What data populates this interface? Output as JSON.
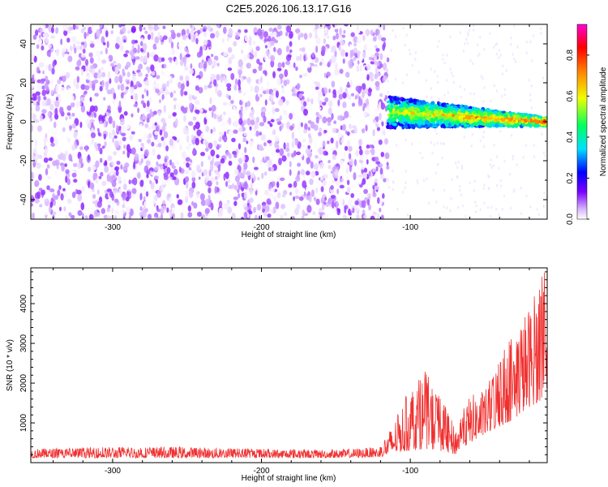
{
  "title": "C2E5.2026.106.13.17.G16",
  "chart_data": [
    {
      "type": "heatmap",
      "xlabel": "Height of straight line (km)",
      "ylabel": "Frequency (Hz)",
      "xlim": [
        -355,
        -8
      ],
      "ylim": [
        -50,
        50
      ],
      "xticks": [
        -300,
        -200,
        -100
      ],
      "yticks": [
        -40,
        -20,
        0,
        20,
        40
      ],
      "colorbar": {
        "label": "Normalized spectral amplitude",
        "range": [
          0,
          0.95
        ],
        "ticks": [
          0.0,
          0.2,
          0.4,
          0.6,
          0.8
        ],
        "colors": [
          "#ffffff",
          "#d8b8ff",
          "#7a00ff",
          "#0000ff",
          "#00e0ff",
          "#00ff60",
          "#f0ff00",
          "#ff8000",
          "#ff0000",
          "#ff00d0"
        ]
      },
      "regions": [
        {
          "x_range": [
            -355,
            -115
          ],
          "freq_range": [
            -50,
            50
          ],
          "amplitude_range": [
            0.0,
            0.12
          ],
          "description": "broadband noise"
        },
        {
          "x_range": [
            -115,
            -8
          ],
          "freq_center": [
            5,
            0
          ],
          "freq_halfwidth": [
            8,
            2
          ],
          "amplitude_range": [
            0.1,
            0.9
          ],
          "description": "signal band converging to 0 Hz"
        }
      ]
    },
    {
      "type": "line",
      "xlabel": "Height of straight line (km)",
      "ylabel": "SNR (10 * v/v)",
      "xlim": [
        -355,
        -8
      ],
      "ylim": [
        0,
        4900
      ],
      "xticks": [
        -300,
        -200,
        -100
      ],
      "yticks": [
        1000,
        2000,
        3000,
        4000
      ],
      "color": "#f03030",
      "series": [
        {
          "x": [
            -355,
            -300,
            -250,
            -200,
            -150,
            -120,
            -110,
            -100,
            -90,
            -80,
            -70,
            -60,
            -50,
            -40,
            -30,
            -20,
            -10,
            -8
          ],
          "y_low": [
            120,
            120,
            120,
            120,
            120,
            140,
            250,
            300,
            350,
            300,
            200,
            500,
            700,
            900,
            1100,
            1400,
            1600,
            1800
          ],
          "y_high": [
            350,
            400,
            400,
            350,
            330,
            400,
            1100,
            1900,
            2300,
            1700,
            900,
            1700,
            1800,
            2700,
            3300,
            4000,
            4900,
            3300
          ]
        }
      ]
    }
  ]
}
